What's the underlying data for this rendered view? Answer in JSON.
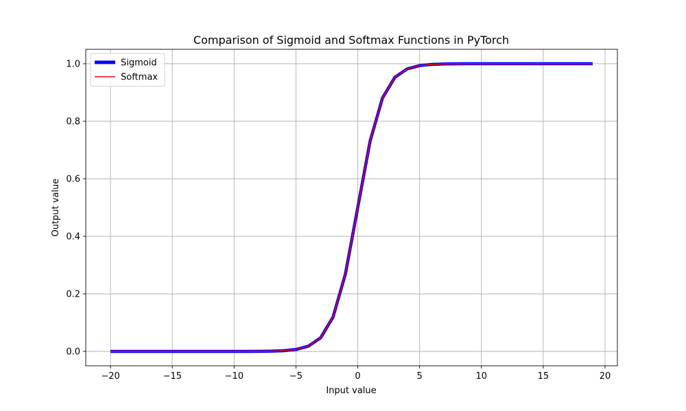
{
  "chart_data": {
    "type": "line",
    "title": "Comparison of Sigmoid and Softmax Functions in PyTorch",
    "xlabel": "Input value",
    "ylabel": "Output value",
    "xlim": [
      -22.0,
      21.0
    ],
    "ylim": [
      -0.05,
      1.05
    ],
    "x_ticks": [
      -20,
      -15,
      -10,
      -5,
      0,
      5,
      10,
      15,
      20
    ],
    "x_tick_labels": [
      "−20",
      "−15",
      "−10",
      "−5",
      "0",
      "5",
      "10",
      "15",
      "20"
    ],
    "y_ticks": [
      0.0,
      0.2,
      0.4,
      0.6,
      0.8,
      1.0
    ],
    "y_tick_labels": [
      "0.0",
      "0.2",
      "0.4",
      "0.6",
      "0.8",
      "1.0"
    ],
    "grid": true,
    "legend_position": "upper-left",
    "x": [
      -20,
      -19,
      -18,
      -17,
      -16,
      -15,
      -14,
      -13,
      -12,
      -11,
      -10,
      -9,
      -8,
      -7,
      -6,
      -5,
      -4,
      -3,
      -2,
      -1,
      0,
      1,
      2,
      3,
      4,
      5,
      6,
      7,
      8,
      9,
      10,
      11,
      12,
      13,
      14,
      15,
      16,
      17,
      18,
      19
    ],
    "series": [
      {
        "name": "Sigmoid",
        "color": "#0000ff",
        "values": [
          0.0,
          0.0,
          0.0,
          0.0,
          0.0,
          0.0,
          0.0,
          0.0,
          0.0,
          0.0,
          0.0,
          0.0001,
          0.0003,
          0.0009,
          0.0025,
          0.0067,
          0.018,
          0.0474,
          0.1192,
          0.2689,
          0.5,
          0.7311,
          0.8808,
          0.9526,
          0.982,
          0.9933,
          0.9975,
          0.9991,
          0.9997,
          0.9999,
          1.0,
          1.0,
          1.0,
          1.0,
          1.0,
          1.0,
          1.0,
          1.0,
          1.0,
          1.0
        ]
      },
      {
        "name": "Softmax",
        "color": "#ff0000",
        "values": [
          0.0,
          0.0,
          0.0,
          0.0,
          0.0,
          0.0,
          0.0,
          0.0,
          0.0,
          0.0,
          0.0,
          0.0001,
          0.0003,
          0.0009,
          0.0025,
          0.0067,
          0.018,
          0.0474,
          0.1192,
          0.2689,
          0.5,
          0.7311,
          0.8808,
          0.9526,
          0.982,
          0.9933,
          0.9975,
          0.9991,
          0.9997,
          0.9999,
          1.0,
          1.0,
          1.0,
          1.0,
          1.0,
          1.0,
          1.0,
          1.0,
          1.0,
          1.0
        ]
      }
    ]
  }
}
